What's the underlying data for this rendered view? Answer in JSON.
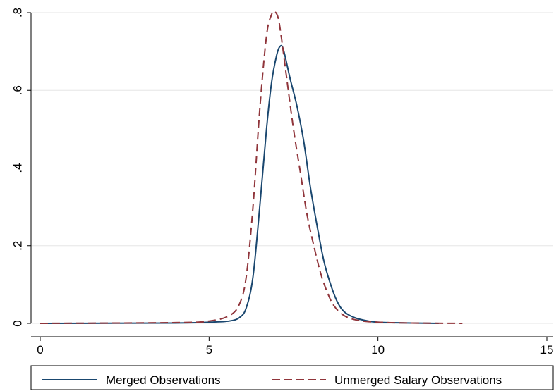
{
  "chart_data": {
    "type": "line",
    "xlim": [
      0,
      15
    ],
    "ylim": [
      0,
      0.8
    ],
    "x_ticks": [
      {
        "value": 0,
        "label": "0"
      },
      {
        "value": 5,
        "label": "5"
      },
      {
        "value": 10,
        "label": "10"
      },
      {
        "value": 15,
        "label": "15"
      }
    ],
    "y_ticks": [
      {
        "value": 0,
        "label": "0"
      },
      {
        "value": 0.2,
        "label": ".2"
      },
      {
        "value": 0.4,
        "label": ".4"
      },
      {
        "value": 0.6,
        "label": ".6"
      },
      {
        "value": 0.8,
        "label": ".8"
      }
    ],
    "grid": "horizontal",
    "legend_position": "bottom",
    "series": [
      {
        "name": "Merged Observations",
        "color": "#1a476f",
        "dash": "solid",
        "points": [
          [
            0,
            0
          ],
          [
            4,
            0.001
          ],
          [
            5,
            0.003
          ],
          [
            5.6,
            0.006
          ],
          [
            5.9,
            0.015
          ],
          [
            6.1,
            0.04
          ],
          [
            6.3,
            0.12
          ],
          [
            6.5,
            0.3
          ],
          [
            6.7,
            0.5
          ],
          [
            6.85,
            0.62
          ],
          [
            7.0,
            0.69
          ],
          [
            7.1,
            0.713
          ],
          [
            7.2,
            0.705
          ],
          [
            7.4,
            0.63
          ],
          [
            7.6,
            0.56
          ],
          [
            7.8,
            0.47
          ],
          [
            8.0,
            0.35
          ],
          [
            8.2,
            0.25
          ],
          [
            8.4,
            0.16
          ],
          [
            8.6,
            0.1
          ],
          [
            8.8,
            0.055
          ],
          [
            9.0,
            0.03
          ],
          [
            9.3,
            0.015
          ],
          [
            9.6,
            0.008
          ],
          [
            10,
            0.003
          ],
          [
            11,
            0.001
          ],
          [
            11.8,
            0
          ]
        ]
      },
      {
        "name": "Unmerged Salary Observations",
        "color": "#90353b",
        "dash": "dashed",
        "points": [
          [
            0,
            0
          ],
          [
            4,
            0.002
          ],
          [
            5,
            0.006
          ],
          [
            5.6,
            0.02
          ],
          [
            5.9,
            0.05
          ],
          [
            6.1,
            0.12
          ],
          [
            6.3,
            0.3
          ],
          [
            6.5,
            0.55
          ],
          [
            6.7,
            0.74
          ],
          [
            6.85,
            0.795
          ],
          [
            6.95,
            0.802
          ],
          [
            7.05,
            0.785
          ],
          [
            7.15,
            0.73
          ],
          [
            7.3,
            0.63
          ],
          [
            7.5,
            0.5
          ],
          [
            7.7,
            0.39
          ],
          [
            7.9,
            0.28
          ],
          [
            8.1,
            0.2
          ],
          [
            8.3,
            0.13
          ],
          [
            8.5,
            0.08
          ],
          [
            8.7,
            0.045
          ],
          [
            9.0,
            0.02
          ],
          [
            9.4,
            0.008
          ],
          [
            10,
            0.003
          ],
          [
            11,
            0.001
          ],
          [
            12.5,
            0
          ]
        ]
      }
    ]
  }
}
